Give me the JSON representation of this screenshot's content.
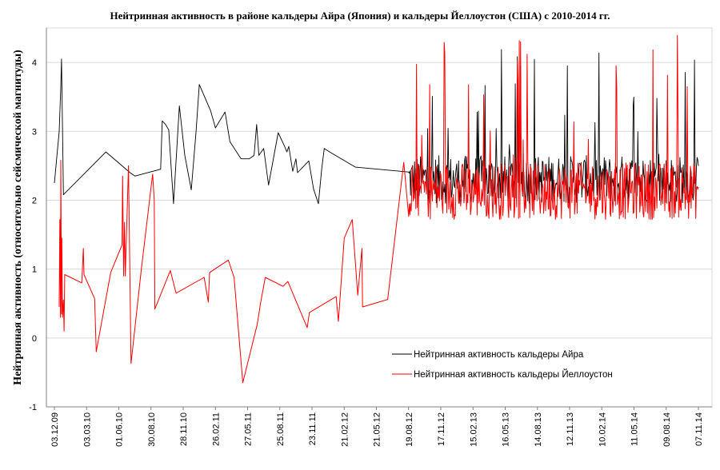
{
  "chart_data": {
    "type": "line",
    "title": "Нейтринная  активность  в районе кальдеры Айра (Япония) и кальдеры Йеллоустон (США) с 2010-2014 гг.",
    "ylabel": "Нейтринная   активность  (относительно  сейсмической  магнитуды)",
    "xlabel": "",
    "ylim": [
      -1,
      4.5
    ],
    "yticks": [
      -1,
      0,
      1,
      2,
      3,
      4
    ],
    "x_ticks": [
      "03.12.09",
      "03.03.10",
      "01.06.10",
      "30.08.10",
      "28.11.10",
      "26.02.11",
      "27.05.11",
      "25.08.11",
      "23.11.11",
      "21.02.12",
      "21.05.12",
      "19.08.12",
      "17.11.12",
      "15.02.13",
      "16.05.13",
      "14.08.13",
      "12.11.13",
      "10.02.14",
      "11.05.14",
      "09.08.14",
      "07.11.14"
    ],
    "grid": "horizontal",
    "legend_position": "lower-right",
    "series": [
      {
        "name": "Нейтринная активность кальдеры Айра",
        "color": "#000000",
        "points": [
          [
            0.0,
            2.25
          ],
          [
            0.15,
            3.0
          ],
          [
            0.2,
            3.65
          ],
          [
            0.22,
            4.05
          ],
          [
            0.28,
            2.08
          ],
          [
            1.6,
            2.7
          ],
          [
            2.35,
            2.4
          ],
          [
            2.5,
            2.35
          ],
          [
            3.3,
            2.45
          ],
          [
            3.35,
            3.15
          ],
          [
            3.45,
            3.1
          ],
          [
            3.55,
            3.02
          ],
          [
            3.7,
            1.95
          ],
          [
            3.88,
            3.37
          ],
          [
            4.05,
            2.65
          ],
          [
            4.25,
            2.15
          ],
          [
            4.4,
            3.0
          ],
          [
            4.5,
            3.68
          ],
          [
            4.85,
            3.3
          ],
          [
            5.0,
            3.05
          ],
          [
            5.3,
            3.28
          ],
          [
            5.45,
            2.85
          ],
          [
            5.8,
            2.6
          ],
          [
            6.05,
            2.6
          ],
          [
            6.2,
            2.65
          ],
          [
            6.28,
            3.1
          ],
          [
            6.35,
            2.65
          ],
          [
            6.5,
            2.75
          ],
          [
            6.65,
            2.22
          ],
          [
            6.95,
            2.98
          ],
          [
            7.15,
            2.78
          ],
          [
            7.22,
            2.7
          ],
          [
            7.28,
            2.78
          ],
          [
            7.4,
            2.42
          ],
          [
            7.5,
            2.6
          ],
          [
            7.55,
            2.4
          ],
          [
            7.9,
            2.57
          ],
          [
            8.05,
            2.16
          ],
          [
            8.2,
            1.95
          ],
          [
            8.3,
            2.45
          ],
          [
            8.38,
            2.75
          ],
          [
            8.55,
            2.7
          ],
          [
            9.35,
            2.48
          ]
        ]
      },
      {
        "name": "Нейтринная активность кальдеры Йеллоустон",
        "color": "#ff0000",
        "points": [
          [
            0.15,
            0.45
          ],
          [
            0.17,
            1.72
          ],
          [
            0.19,
            0.3
          ],
          [
            0.2,
            2.58
          ],
          [
            0.22,
            0.35
          ],
          [
            0.23,
            1.45
          ],
          [
            0.25,
            0.3
          ],
          [
            0.28,
            0.55
          ],
          [
            0.3,
            0.1
          ],
          [
            0.32,
            0.92
          ],
          [
            0.85,
            0.8
          ],
          [
            0.9,
            1.3
          ],
          [
            0.92,
            0.92
          ],
          [
            1.25,
            0.57
          ],
          [
            1.3,
            -0.2
          ],
          [
            1.75,
            0.95
          ],
          [
            2.1,
            1.35
          ],
          [
            2.12,
            2.35
          ],
          [
            2.15,
            0.9
          ],
          [
            2.18,
            1.68
          ],
          [
            2.2,
            0.9
          ],
          [
            2.3,
            2.5
          ],
          [
            2.38,
            -0.37
          ],
          [
            2.7,
            1.0
          ],
          [
            3.05,
            2.38
          ],
          [
            3.1,
            2.0
          ],
          [
            3.12,
            0.42
          ],
          [
            3.6,
            0.98
          ],
          [
            3.78,
            0.65
          ],
          [
            4.65,
            0.88
          ],
          [
            4.78,
            0.52
          ],
          [
            4.82,
            0.95
          ],
          [
            5.4,
            1.13
          ],
          [
            5.58,
            0.88
          ],
          [
            5.85,
            -0.65
          ],
          [
            6.3,
            0.2
          ],
          [
            6.4,
            0.5
          ],
          [
            6.55,
            0.88
          ],
          [
            7.1,
            0.75
          ],
          [
            7.25,
            0.82
          ],
          [
            7.85,
            0.15
          ],
          [
            7.92,
            0.37
          ],
          [
            8.75,
            0.6
          ],
          [
            8.82,
            0.24
          ],
          [
            9.0,
            1.45
          ],
          [
            9.25,
            1.72
          ],
          [
            9.42,
            0.62
          ],
          [
            9.55,
            1.3
          ],
          [
            9.57,
            0.45
          ],
          [
            10.35,
            0.56
          ],
          [
            10.85,
            2.55
          ],
          [
            10.9,
            2.3
          ]
        ]
      }
    ],
    "dense_region": {
      "x_start": 11.0,
      "x_end": 20.0,
      "aira": {
        "low": 1.95,
        "high": 2.65,
        "max": 4.2
      },
      "yellowstone": {
        "low": 1.72,
        "high": 2.55,
        "max": 4.42
      }
    }
  }
}
